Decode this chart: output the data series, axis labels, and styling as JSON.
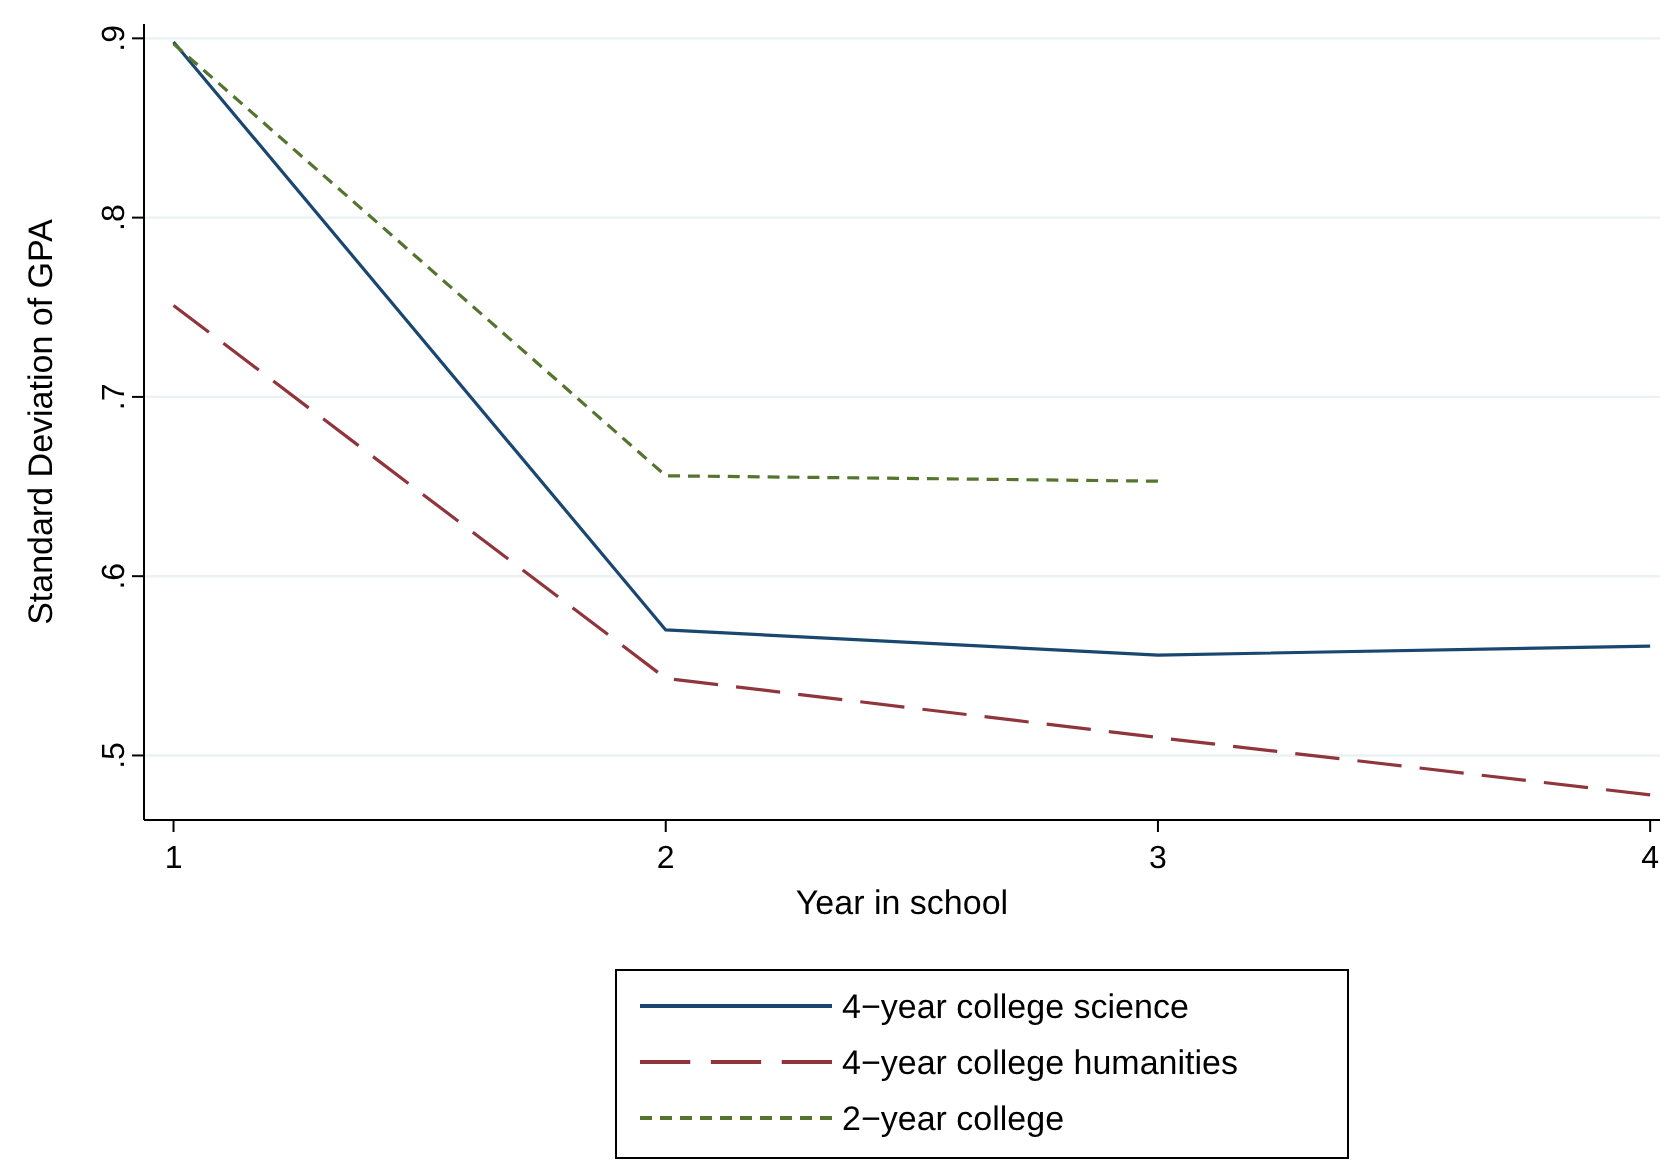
{
  "chart_data": {
    "type": "line",
    "xlabel": "Year in school",
    "ylabel": "Standard Deviation of GPA",
    "x": [
      1,
      2,
      3,
      4
    ],
    "xlim": [
      0.94,
      4.02
    ],
    "xticks": [
      1,
      2,
      3,
      4
    ],
    "ylim": [
      0.464,
      0.908
    ],
    "yticks": [
      {
        "value": 0.5,
        "label": ".5"
      },
      {
        "value": 0.6,
        "label": ".6"
      },
      {
        "value": 0.7,
        "label": ".7"
      },
      {
        "value": 0.8,
        "label": ".8"
      },
      {
        "value": 0.9,
        "label": ".9"
      }
    ],
    "grid": "y",
    "legend": "bottom",
    "series": [
      {
        "name": "4−year college science",
        "color": "#1a476f",
        "line_style": "solid",
        "values": [
          0.898,
          0.57,
          0.556,
          0.561
        ]
      },
      {
        "name": "4−year college humanities",
        "color": "#90353b",
        "line_style": "longdash",
        "values": [
          0.751,
          0.543,
          0.51,
          0.478
        ]
      },
      {
        "name": "2−year college",
        "color": "#55752f",
        "line_style": "dashed",
        "values": [
          0.897,
          0.656,
          0.653,
          null
        ]
      }
    ]
  }
}
